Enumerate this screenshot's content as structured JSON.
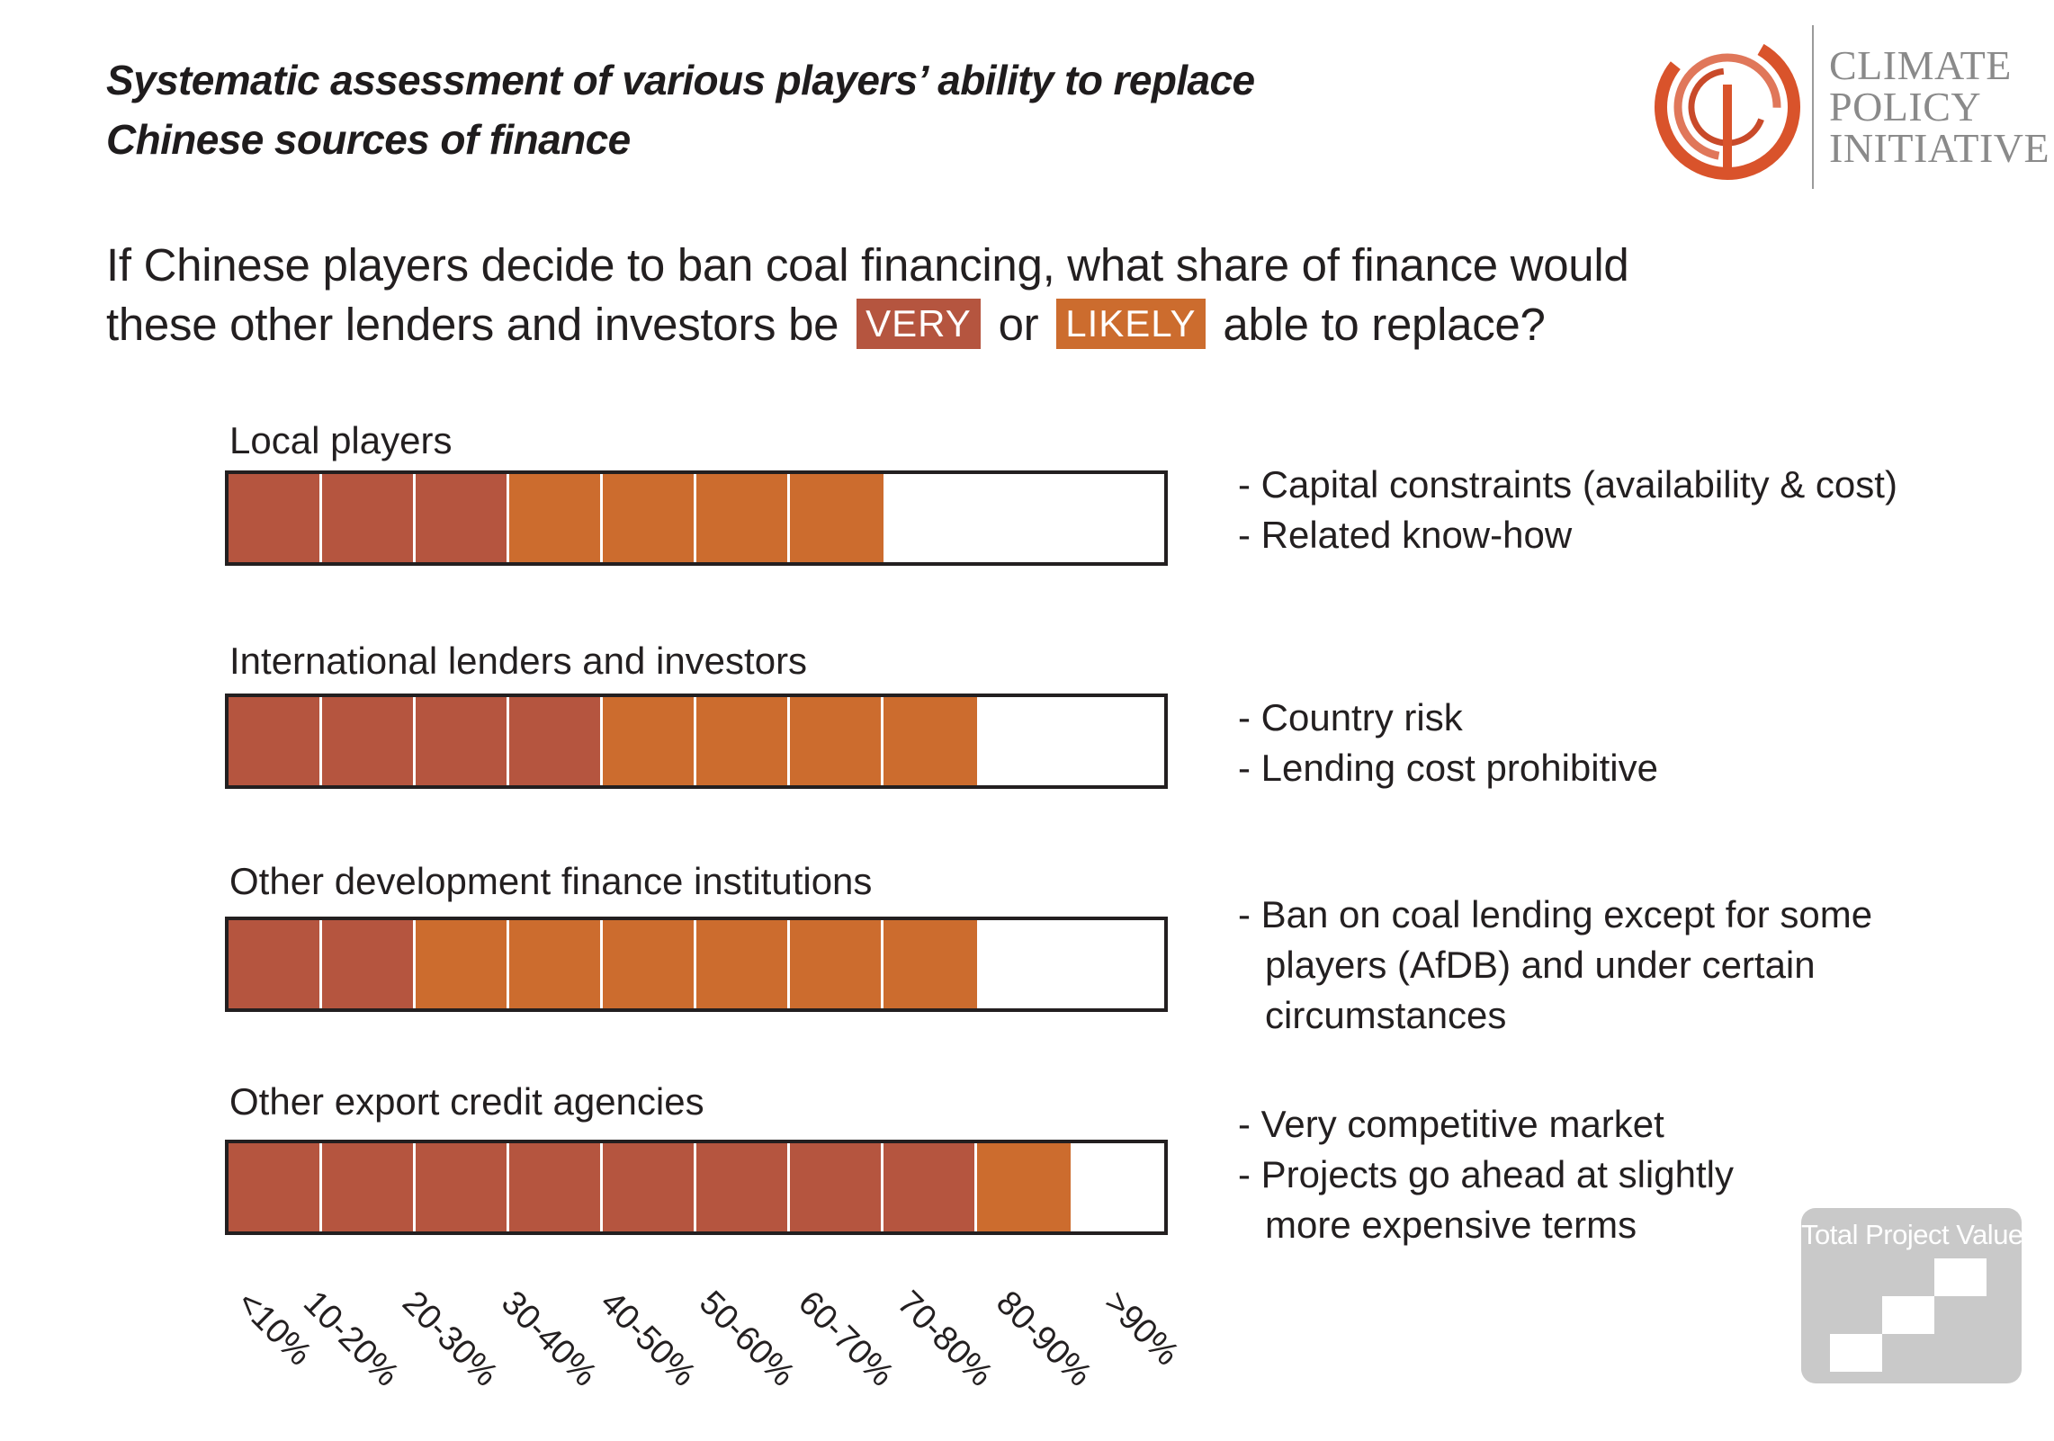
{
  "header": {
    "title_lines": [
      "Systematic assessment of various players’ ability to replace",
      "Chinese sources of finance"
    ]
  },
  "question": {
    "line1": "If Chinese players decide to ban coal financing, what share of finance would",
    "line2_before": "these other lenders and investors be",
    "very_label": "VERY",
    "or_text": "or",
    "likely_label": "LIKELY",
    "line2_after": "able to replace?"
  },
  "logo": {
    "lines": [
      "CLIMATE",
      "POLICY",
      "INITIATIVE"
    ]
  },
  "colors": {
    "very": "#b5553f",
    "likely": "#cc6c2e",
    "empty": "#ffffff",
    "frame": "#231f20",
    "logo_accent": "#d9532b"
  },
  "badge": {
    "label": "Total Project Value"
  },
  "chart_data": {
    "type": "bar",
    "subtype": "segmented-scale",
    "categories": [
      "<10%",
      "10-20%",
      "20-30%",
      "30-40%",
      "40-50%",
      "50-60%",
      "60-70%",
      "70-80%",
      "80-90%",
      ">90%"
    ],
    "series": [
      {
        "name": "VERY",
        "color": "#b5553f"
      },
      {
        "name": "LIKELY",
        "color": "#cc6c2e"
      }
    ],
    "rows": [
      {
        "label": "Local players",
        "very_segments": 3,
        "likely_segments": 4,
        "notes": [
          {
            "text": "- Capital constraints (availability & cost)",
            "indent": false
          },
          {
            "text": "- Related know-how",
            "indent": false
          }
        ]
      },
      {
        "label": "International lenders and investors",
        "very_segments": 4,
        "likely_segments": 4,
        "notes": [
          {
            "text": "- Country risk",
            "indent": false
          },
          {
            "text": "- Lending cost prohibitive",
            "indent": false
          }
        ]
      },
      {
        "label": "Other development finance institutions",
        "very_segments": 2,
        "likely_segments": 6,
        "notes": [
          {
            "text": "- Ban on coal lending except for some",
            "indent": false
          },
          {
            "text": "players (AfDB) and under certain",
            "indent": true
          },
          {
            "text": "circumstances",
            "indent": true
          }
        ]
      },
      {
        "label": "Other export credit agencies",
        "very_segments": 8,
        "likely_segments": 1,
        "notes": [
          {
            "text": "- Very competitive market",
            "indent": false
          },
          {
            "text": "- Projects go ahead at slightly",
            "indent": false
          },
          {
            "text": "more expensive terms",
            "indent": true
          }
        ]
      }
    ]
  }
}
